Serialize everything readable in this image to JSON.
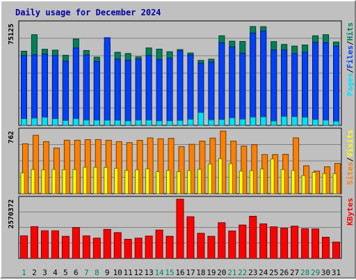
{
  "title": "Daily usage for December 2024",
  "colors": {
    "background": "#c0c0c0",
    "title": "#0000a0",
    "axis_text": "#000000",
    "hits": "#00805c",
    "files": "#0040ff",
    "pages": "#00e0ff",
    "sites": "#ff8000",
    "visits": "#ffff00",
    "kbytes": "#ff0000",
    "weekend_label": "#00805c",
    "weekday_label": "#000000"
  },
  "chart_data": [
    {
      "type": "bar",
      "panel": "top",
      "y_label_max": "75125",
      "ylim": [
        0,
        75125
      ],
      "legend": [
        "Pages",
        "Files",
        "Hits"
      ],
      "legend_separator": "/",
      "categories": [
        "1",
        "2",
        "3",
        "4",
        "5",
        "6",
        "7",
        "8",
        "9",
        "10",
        "11",
        "12",
        "13",
        "14",
        "15",
        "16",
        "17",
        "18",
        "19",
        "20",
        "21",
        "22",
        "23",
        "24",
        "25",
        "26",
        "27",
        "28",
        "29",
        "30",
        "31"
      ],
      "series": [
        {
          "name": "Hits",
          "values": [
            54800,
            67000,
            56200,
            55600,
            51800,
            63800,
            55300,
            50400,
            60900,
            54000,
            53100,
            50600,
            57200,
            56300,
            54400,
            56000,
            53500,
            48000,
            48900,
            66200,
            62200,
            62000,
            73000,
            72900,
            61900,
            59800,
            58600,
            59400,
            66200,
            67000,
            61600
          ]
        },
        {
          "name": "Files",
          "values": [
            51600,
            52100,
            52600,
            51600,
            47400,
            57200,
            52000,
            47100,
            64800,
            48900,
            48000,
            48900,
            51800,
            48600,
            49700,
            55000,
            52000,
            45900,
            46800,
            61000,
            58000,
            53300,
            68200,
            69700,
            55600,
            55600,
            53100,
            54000,
            61300,
            61100,
            58500
          ]
        },
        {
          "name": "Pages",
          "values": [
            4900,
            5300,
            6000,
            4900,
            3600,
            5000,
            3900,
            3900,
            3800,
            3800,
            3300,
            3900,
            3900,
            3300,
            3300,
            3600,
            4500,
            9500,
            4100,
            4300,
            5600,
            4600,
            6100,
            6300,
            3200,
            6600,
            6400,
            6000,
            4300,
            3900,
            3100
          ]
        }
      ]
    },
    {
      "type": "bar",
      "panel": "middle",
      "y_label_max": "762",
      "ylim": [
        0,
        762
      ],
      "legend": [
        "Sites",
        "Visits"
      ],
      "legend_separator": "/",
      "categories": [
        "1",
        "2",
        "3",
        "4",
        "5",
        "6",
        "7",
        "8",
        "9",
        "10",
        "11",
        "12",
        "13",
        "14",
        "15",
        "16",
        "17",
        "18",
        "19",
        "20",
        "21",
        "22",
        "23",
        "24",
        "25",
        "26",
        "27",
        "28",
        "29",
        "30",
        "31"
      ],
      "series": [
        {
          "name": "Sites",
          "values": [
            606,
            709,
            632,
            554,
            649,
            649,
            656,
            657,
            649,
            632,
            620,
            648,
            677,
            667,
            672,
            571,
            600,
            638,
            675,
            761,
            638,
            578,
            595,
            475,
            475,
            478,
            678,
            339,
            274,
            326,
            367
          ]
        },
        {
          "name": "Visits",
          "values": [
            253,
            293,
            289,
            295,
            290,
            293,
            320,
            320,
            318,
            307,
            281,
            289,
            301,
            267,
            282,
            267,
            280,
            295,
            360,
            425,
            364,
            274,
            280,
            299,
            422,
            293,
            282,
            220,
            258,
            244,
            242
          ]
        }
      ]
    },
    {
      "type": "bar",
      "panel": "bottom",
      "y_label_max": "2570372",
      "ylim": [
        0,
        2570372
      ],
      "legend": [
        "KBytes"
      ],
      "categories": [
        "1",
        "2",
        "3",
        "4",
        "5",
        "6",
        "7",
        "8",
        "9",
        "10",
        "11",
        "12",
        "13",
        "14",
        "15",
        "16",
        "17",
        "18",
        "19",
        "20",
        "21",
        "22",
        "23",
        "24",
        "25",
        "26",
        "27",
        "28",
        "29",
        "30",
        "31"
      ],
      "x_label_highlight": [
        "1",
        "7",
        "8",
        "14",
        "15",
        "21",
        "22",
        "28",
        "29"
      ],
      "series": [
        {
          "name": "KBytes",
          "values": [
            980000,
            1380000,
            1200000,
            1200000,
            960000,
            1340000,
            980000,
            880000,
            1260000,
            1120000,
            830000,
            880000,
            970000,
            1230000,
            960000,
            2570000,
            1810000,
            1090000,
            960000,
            1550000,
            1190000,
            1450000,
            1830000,
            1500000,
            1370000,
            1310000,
            1400000,
            1290000,
            1280000,
            920000,
            710000
          ]
        }
      ]
    }
  ]
}
